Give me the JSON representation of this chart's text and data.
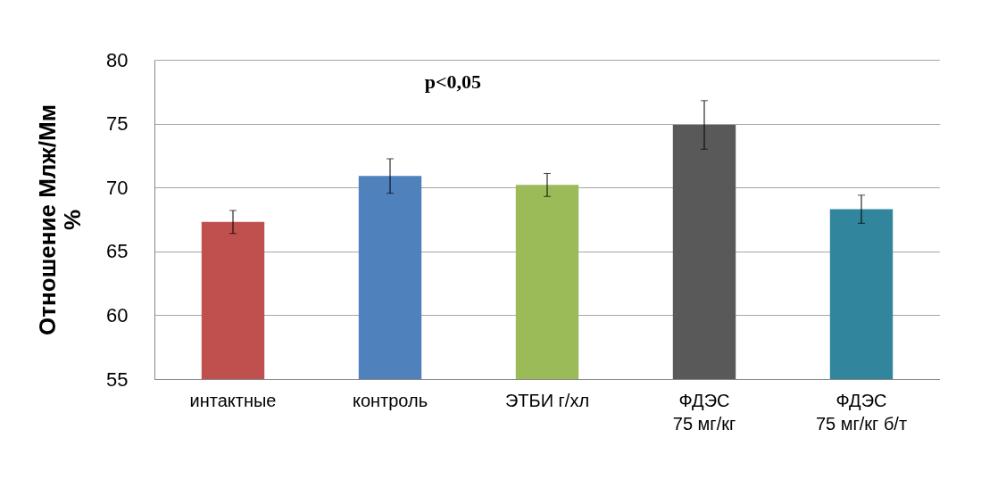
{
  "chart_data": {
    "type": "bar",
    "ylabel": "Отношение Млж/Мм\n%",
    "categories": [
      "интактные",
      "контроль",
      "ЭТБИ г/хл",
      "ФДЭС\n75 мг/кг",
      "ФДЭС\n75 мг/кг б/т"
    ],
    "values": [
      67.3,
      70.9,
      70.2,
      74.9,
      68.3
    ],
    "colors": [
      "#c0504d",
      "#4f81bd",
      "#9bbb59",
      "#595959",
      "#31859c"
    ],
    "errors": [
      0.9,
      1.35,
      0.9,
      1.9,
      1.1
    ],
    "ylim": [
      55,
      80
    ],
    "yticks": [
      55,
      60,
      65,
      70,
      75,
      80
    ],
    "grid": "y",
    "annotations": [
      "p<0,05"
    ]
  }
}
